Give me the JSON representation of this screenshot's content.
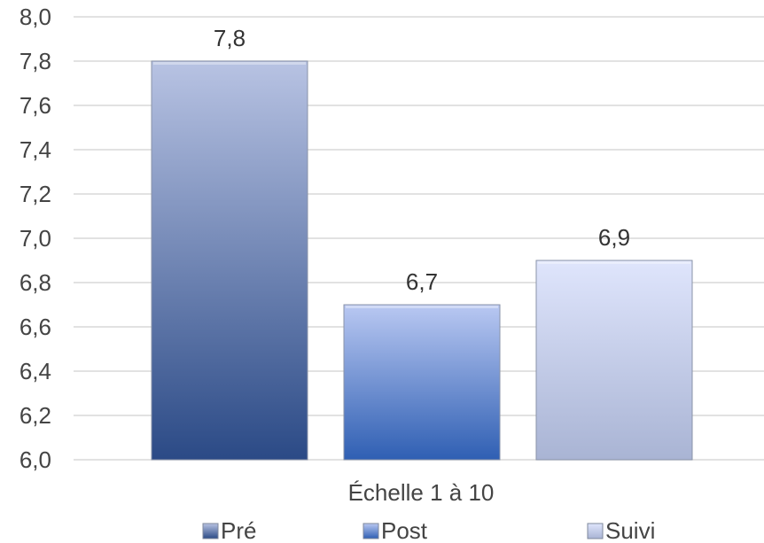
{
  "chart_data": {
    "type": "bar",
    "xlabel": "Échelle 1 à 10",
    "ylim": [
      6.0,
      8.0
    ],
    "y_ticks": [
      "6,0",
      "6,2",
      "6,4",
      "6,6",
      "6,8",
      "7,0",
      "7,2",
      "7,4",
      "7,6",
      "7,8",
      "8,0"
    ],
    "series": [
      {
        "name": "Pré",
        "values": [
          7.8
        ],
        "label": "7,8",
        "color_top": "#b8c3e3",
        "color_bottom": "#2b4a86"
      },
      {
        "name": "Post",
        "values": [
          6.7
        ],
        "label": "6,7",
        "color_top": "#b9c8f2",
        "color_bottom": "#2f5fb3"
      },
      {
        "name": "Suivi",
        "values": [
          6.9
        ],
        "label": "6,9",
        "color_top": "#dfe5fc",
        "color_bottom": "#a9b4d4"
      }
    ],
    "grid": true,
    "legend": "bottom"
  }
}
